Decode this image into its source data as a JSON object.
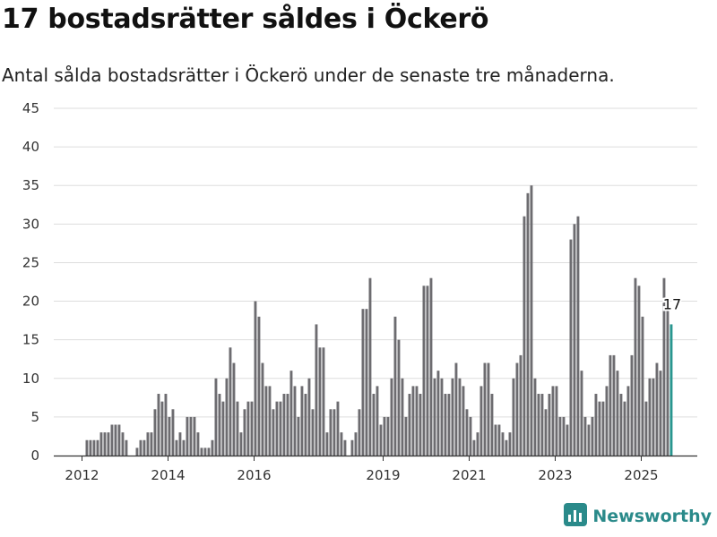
{
  "title": "17 bostadsrätter såldes i Öckerö",
  "subtitle": "Antal sålda bostadsrätter i Öckerö under de senaste tre månaderna.",
  "brand": {
    "name": "Newsworthy",
    "icon": "newsworthy-logo-icon"
  },
  "colors": {
    "bar": "#6d6c70",
    "highlight": "#29968f",
    "grid": "#dddddd",
    "axis": "#333333"
  },
  "chart_data": {
    "type": "bar",
    "title": "",
    "xlabel": "",
    "ylabel": "",
    "ylim": [
      0,
      45
    ],
    "yticks": [
      0,
      5,
      10,
      15,
      20,
      25,
      30,
      35,
      40,
      45
    ],
    "xticks": [
      "2012",
      "2014",
      "2016",
      "2019",
      "2021",
      "2023",
      "2025"
    ],
    "grid": true,
    "start_period": "2012-01",
    "frequency": "monthly",
    "annotation": {
      "text": "17",
      "target": "last"
    },
    "values": [
      0,
      2,
      2,
      2,
      2,
      3,
      3,
      3,
      4,
      4,
      4,
      3,
      2,
      0,
      0,
      1,
      2,
      2,
      3,
      3,
      6,
      8,
      7,
      8,
      5,
      6,
      2,
      3,
      2,
      5,
      5,
      5,
      3,
      1,
      1,
      1,
      2,
      10,
      8,
      7,
      10,
      14,
      12,
      7,
      3,
      6,
      7,
      7,
      20,
      18,
      12,
      9,
      9,
      6,
      7,
      7,
      8,
      8,
      11,
      9,
      5,
      9,
      8,
      10,
      6,
      17,
      14,
      14,
      3,
      6,
      6,
      7,
      3,
      2,
      0,
      2,
      3,
      6,
      19,
      19,
      23,
      8,
      9,
      4,
      5,
      5,
      10,
      18,
      15,
      10,
      5,
      8,
      9,
      9,
      8,
      22,
      22,
      23,
      10,
      11,
      10,
      8,
      8,
      10,
      12,
      10,
      9,
      6,
      5,
      2,
      3,
      9,
      12,
      12,
      8,
      4,
      4,
      3,
      2,
      3,
      10,
      12,
      13,
      31,
      34,
      35,
      10,
      8,
      8,
      6,
      8,
      9,
      9,
      5,
      5,
      4,
      28,
      30,
      31,
      11,
      5,
      4,
      5,
      8,
      7,
      7,
      9,
      13,
      13,
      11,
      8,
      7,
      9,
      13,
      23,
      22,
      18,
      7,
      10,
      10,
      12,
      11,
      23,
      20,
      17
    ],
    "highlight_last": true
  }
}
